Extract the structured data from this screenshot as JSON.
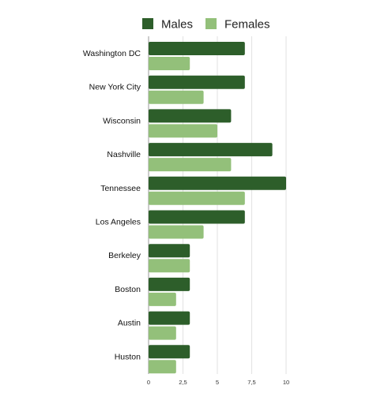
{
  "chart_data": {
    "type": "bar",
    "orientation": "horizontal",
    "categories": [
      "Washington DC",
      "New York City",
      "Wisconsin",
      "Nashville",
      "Tennessee",
      "Los Angeles",
      "Berkeley",
      "Boston",
      "Austin",
      "Huston"
    ],
    "series": [
      {
        "name": "Males",
        "color": "#2d5e2a",
        "values": [
          7,
          7,
          6,
          9,
          10,
          7,
          3,
          3,
          3,
          3
        ]
      },
      {
        "name": "Females",
        "color": "#93c07a",
        "values": [
          3,
          4,
          5,
          6,
          7,
          4,
          3,
          2,
          2,
          2
        ]
      }
    ],
    "x_ticks": [
      "0",
      "2,5",
      "5",
      "7,5",
      "10"
    ],
    "xlim": [
      0,
      10
    ],
    "grid": true,
    "legend_position": "top"
  }
}
